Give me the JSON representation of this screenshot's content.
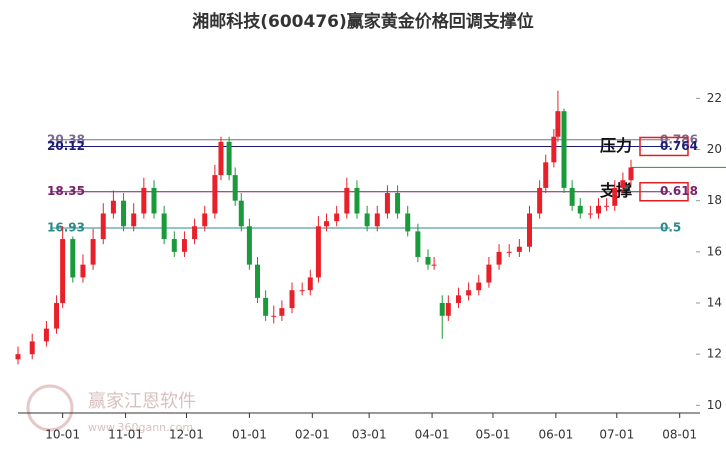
{
  "chart_data": {
    "type": "candlestick",
    "title": "湘邮科技(600476)赢家黄金价格回调支撑位",
    "watermark": [
      "赢家江恩软件",
      "www.360gann.com"
    ],
    "xlim": [
      8,
      344
    ],
    "ylim": [
      9.7,
      23.5
    ],
    "yticks": [
      10,
      12,
      14,
      16,
      18,
      20,
      22
    ],
    "xticks": [
      {
        "value": 30,
        "label": "10-01"
      },
      {
        "value": 61,
        "label": "11-01"
      },
      {
        "value": 91,
        "label": "12-01"
      },
      {
        "value": 122,
        "label": "01-01"
      },
      {
        "value": 153,
        "label": "02-01"
      },
      {
        "value": 181,
        "label": "03-01"
      },
      {
        "value": 212,
        "label": "04-01"
      },
      {
        "value": 242,
        "label": "05-01"
      },
      {
        "value": 273,
        "label": "06-01"
      },
      {
        "value": 303,
        "label": "07-01"
      },
      {
        "value": 334,
        "label": "08-01"
      }
    ],
    "up_color": "#e8202a",
    "down_color": "#1a9a3a",
    "levels": [
      {
        "price": 20.38,
        "ratio": 0.786,
        "color": "#7a6a90"
      },
      {
        "price": 20.12,
        "ratio": 0.764,
        "color": "#1c1c7a",
        "tag": "压力"
      },
      {
        "price": 18.35,
        "ratio": 0.618,
        "color": "#7a1f6a",
        "tag": "支撑"
      },
      {
        "price": 16.93,
        "ratio": 0.5,
        "color": "#2a8a8a"
      }
    ],
    "current_price": 19.3,
    "x": [
      8,
      15,
      22,
      27,
      30,
      35,
      40,
      45,
      50,
      55,
      60,
      65,
      70,
      75,
      80,
      85,
      90,
      95,
      100,
      105,
      108,
      112,
      115,
      118,
      122,
      126,
      130,
      134,
      138,
      143,
      148,
      152,
      156,
      160,
      165,
      170,
      175,
      180,
      185,
      190,
      195,
      200,
      205,
      210,
      213,
      217,
      220,
      225,
      230,
      235,
      240,
      245,
      250,
      255,
      260,
      265,
      268,
      272,
      274,
      277,
      281,
      285,
      290,
      294,
      298,
      302,
      306,
      310
    ],
    "open": [
      11.8,
      12.0,
      12.5,
      13.0,
      14.0,
      16.5,
      15.0,
      15.5,
      16.5,
      17.5,
      18.0,
      17.0,
      17.5,
      18.5,
      17.5,
      16.5,
      16.0,
      16.5,
      17.0,
      17.5,
      19.0,
      20.3,
      19.0,
      18.0,
      17.0,
      15.5,
      14.2,
      13.5,
      13.5,
      13.8,
      14.5,
      14.5,
      15.0,
      17.0,
      17.2,
      17.5,
      18.5,
      17.5,
      17.0,
      17.5,
      18.3,
      17.5,
      16.8,
      15.8,
      15.5,
      14.0,
      13.5,
      14.0,
      14.3,
      14.5,
      14.8,
      15.5,
      16.0,
      16.0,
      16.2,
      17.5,
      18.5,
      19.5,
      20.5,
      21.5,
      18.5,
      17.8,
      17.5,
      17.5,
      17.8,
      17.8,
      18.5,
      18.8
    ],
    "close": [
      12.0,
      12.5,
      13.0,
      14.0,
      16.5,
      15.0,
      15.5,
      16.5,
      17.5,
      18.0,
      17.0,
      17.5,
      18.5,
      17.5,
      16.5,
      16.0,
      16.5,
      17.0,
      17.5,
      19.0,
      20.3,
      19.0,
      18.0,
      17.0,
      15.5,
      14.2,
      13.5,
      13.5,
      13.8,
      14.5,
      14.5,
      15.0,
      17.0,
      17.2,
      17.5,
      18.5,
      17.5,
      17.0,
      17.5,
      18.3,
      17.5,
      16.8,
      15.8,
      15.5,
      15.5,
      13.5,
      14.0,
      14.3,
      14.5,
      14.8,
      15.5,
      16.0,
      16.0,
      16.2,
      17.5,
      18.5,
      19.5,
      20.5,
      21.5,
      18.5,
      17.8,
      17.5,
      17.5,
      17.8,
      17.8,
      18.5,
      18.8,
      19.3
    ],
    "high": [
      12.3,
      12.8,
      13.3,
      14.3,
      17.0,
      16.6,
      15.9,
      16.9,
      17.9,
      18.4,
      18.3,
      17.9,
      18.9,
      18.8,
      17.8,
      16.8,
      16.8,
      17.3,
      17.8,
      19.4,
      20.5,
      20.5,
      19.3,
      18.3,
      17.3,
      15.8,
      14.5,
      13.9,
      14.1,
      14.8,
      14.8,
      15.3,
      17.4,
      17.5,
      17.8,
      18.9,
      18.8,
      17.8,
      17.8,
      18.6,
      18.6,
      17.8,
      17.1,
      16.1,
      15.8,
      14.3,
      14.3,
      14.6,
      14.8,
      15.1,
      15.8,
      16.3,
      16.3,
      16.5,
      17.8,
      18.8,
      19.8,
      20.8,
      22.3,
      21.6,
      18.8,
      18.1,
      17.8,
      18.1,
      18.1,
      18.8,
      19.1,
      19.6
    ],
    "low": [
      11.6,
      11.8,
      12.3,
      12.8,
      13.8,
      14.8,
      14.8,
      15.3,
      16.3,
      17.3,
      16.8,
      16.8,
      17.3,
      17.3,
      16.3,
      15.8,
      15.8,
      16.3,
      16.8,
      17.3,
      18.8,
      18.8,
      17.8,
      16.8,
      15.3,
      14.0,
      13.3,
      13.2,
      13.3,
      13.6,
      14.3,
      14.3,
      14.8,
      16.8,
      17.0,
      17.3,
      17.3,
      16.8,
      16.8,
      17.3,
      17.3,
      16.6,
      15.6,
      15.3,
      15.3,
      12.6,
      13.3,
      13.8,
      14.1,
      14.3,
      14.6,
      15.3,
      15.8,
      15.8,
      16.0,
      17.3,
      18.3,
      19.3,
      20.3,
      18.3,
      17.6,
      17.3,
      17.3,
      17.3,
      17.6,
      17.6,
      18.3,
      18.6
    ]
  }
}
